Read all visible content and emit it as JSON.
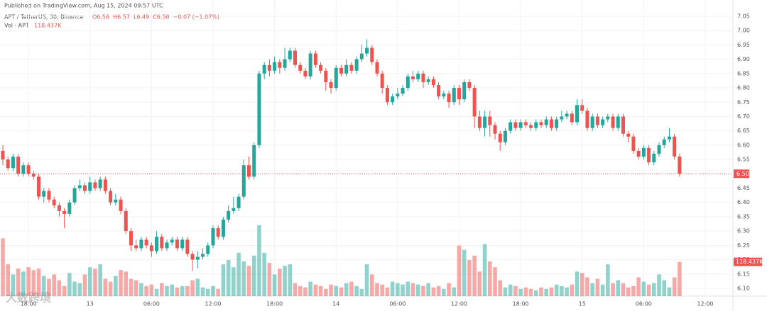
{
  "header": {
    "published": "Published on TradingView.com, Aug 15, 2024 09:57 UTC",
    "symbol": "APT / TetherUS, 30, Binance",
    "ohlc": [
      "O6.56",
      "H6.57",
      "L6.49",
      "C6.50",
      "−0.07 (−1.07%)"
    ],
    "volume_name": "Vol · APT",
    "watermark": "大数跨境"
  },
  "chart_data": {
    "type": "candlestick",
    "up_color": "#26a69a",
    "down_color": "#ef5350",
    "grid": true,
    "ylim": [
      6.1,
      7.05
    ],
    "yticks": [
      {
        "value": 6.1,
        "label": "6.10"
      },
      {
        "value": 6.15,
        "label": "6.15"
      },
      {
        "value": 6.2,
        "label": "6.20"
      },
      {
        "value": 6.25,
        "label": "6.25"
      },
      {
        "value": 6.3,
        "label": "6.30"
      },
      {
        "value": 6.35,
        "label": "6.35"
      },
      {
        "value": 6.4,
        "label": "6.40"
      },
      {
        "value": 6.45,
        "label": "6.45"
      },
      {
        "value": 6.5,
        "label": "6.50"
      },
      {
        "value": 6.55,
        "label": "6.55"
      },
      {
        "value": 6.6,
        "label": "6.60"
      },
      {
        "value": 6.65,
        "label": "6.65"
      },
      {
        "value": 6.7,
        "label": "6.70"
      },
      {
        "value": 6.75,
        "label": "6.75"
      },
      {
        "value": 6.8,
        "label": "6.80"
      },
      {
        "value": 6.85,
        "label": "6.85"
      },
      {
        "value": 6.9,
        "label": "6.90"
      },
      {
        "value": 6.95,
        "label": "6.95"
      },
      {
        "value": 7.0,
        "label": "7.00"
      },
      {
        "value": 7.05,
        "label": "7.05"
      }
    ],
    "last_price": {
      "value": 6.5,
      "label": "6.50"
    },
    "categories": [
      null,
      null,
      null,
      null,
      null,
      "18:00",
      null,
      null,
      null,
      null,
      null,
      null,
      null,
      null,
      null,
      null,
      null,
      "13",
      null,
      null,
      null,
      null,
      null,
      null,
      null,
      null,
      null,
      null,
      null,
      "06:00",
      null,
      null,
      null,
      null,
      null,
      null,
      null,
      null,
      null,
      null,
      null,
      "12:00",
      null,
      null,
      null,
      null,
      null,
      null,
      null,
      null,
      null,
      null,
      null,
      "18:00",
      null,
      null,
      null,
      null,
      null,
      null,
      null,
      null,
      null,
      null,
      null,
      "14",
      null,
      null,
      null,
      null,
      null,
      null,
      null,
      null,
      null,
      null,
      null,
      "06:00",
      null,
      null,
      null,
      null,
      null,
      null,
      null,
      null,
      null,
      null,
      null,
      "12:00",
      null,
      null,
      null,
      null,
      null,
      null,
      null,
      null,
      null,
      null,
      null,
      "18:00",
      null,
      null,
      null,
      null,
      null,
      null,
      null,
      null,
      null,
      null,
      null,
      "15",
      null,
      null,
      null,
      null,
      null,
      null,
      null,
      null,
      null,
      null,
      null,
      "06:00",
      null,
      null,
      null,
      null,
      null,
      null,
      null,
      null,
      null,
      null,
      null,
      "12:00"
    ],
    "open": [
      6.58,
      6.55,
      6.52,
      6.56,
      6.5,
      6.53,
      6.5,
      6.49,
      6.42,
      6.44,
      6.41,
      6.39,
      6.37,
      6.36,
      6.4,
      6.45,
      6.46,
      6.44,
      6.47,
      6.45,
      6.48,
      6.44,
      6.4,
      6.41,
      6.37,
      6.3,
      6.25,
      6.24,
      6.27,
      6.25,
      6.23,
      6.28,
      6.24,
      6.26,
      6.27,
      6.24,
      6.27,
      6.22,
      6.2,
      6.21,
      6.22,
      6.25,
      6.31,
      6.28,
      6.34,
      6.37,
      6.38,
      6.42,
      6.53,
      6.49,
      6.6,
      6.85,
      6.88,
      6.86,
      6.89,
      6.87,
      6.9,
      6.93,
      6.88,
      6.86,
      6.84,
      6.92,
      6.88,
      6.86,
      6.82,
      6.8,
      6.87,
      6.85,
      6.88,
      6.86,
      6.9,
      6.92,
      6.94,
      6.89,
      6.85,
      6.8,
      6.75,
      6.77,
      6.78,
      6.8,
      6.84,
      6.83,
      6.85,
      6.82,
      6.83,
      6.81,
      6.77,
      6.78,
      6.75,
      6.8,
      6.76,
      6.82,
      6.8,
      6.7,
      6.66,
      6.7,
      6.67,
      6.64,
      6.61,
      6.65,
      6.68,
      6.66,
      6.68,
      6.67,
      6.66,
      6.68,
      6.67,
      6.69,
      6.66,
      6.69,
      6.7,
      6.71,
      6.68,
      6.74,
      6.72,
      6.66,
      6.7,
      6.67,
      6.69,
      6.7,
      6.66,
      6.7,
      6.64,
      6.63,
      6.58,
      6.56,
      6.59,
      6.54,
      6.57,
      6.6,
      6.62,
      6.63,
      6.56,
      null,
      null,
      null,
      null,
      null
    ],
    "high": [
      6.6,
      6.56,
      6.57,
      6.57,
      6.54,
      6.54,
      6.51,
      6.5,
      6.45,
      6.45,
      6.42,
      6.4,
      6.38,
      6.41,
      6.46,
      6.48,
      6.47,
      6.49,
      6.48,
      6.49,
      6.49,
      6.45,
      6.43,
      6.42,
      6.38,
      6.31,
      6.27,
      6.28,
      6.28,
      6.26,
      6.3,
      6.29,
      6.27,
      6.28,
      6.28,
      6.28,
      6.28,
      6.23,
      6.23,
      6.24,
      6.26,
      6.32,
      6.32,
      6.35,
      6.39,
      6.42,
      6.43,
      6.55,
      6.56,
      6.61,
      6.86,
      6.89,
      6.9,
      6.91,
      6.9,
      6.94,
      6.94,
      6.94,
      6.89,
      6.87,
      6.93,
      6.93,
      6.89,
      6.87,
      6.83,
      6.88,
      6.88,
      6.9,
      6.89,
      6.91,
      6.95,
      6.97,
      6.95,
      6.9,
      6.86,
      6.81,
      6.78,
      6.8,
      6.81,
      6.85,
      6.86,
      6.86,
      6.86,
      6.84,
      6.84,
      6.82,
      6.79,
      6.79,
      6.81,
      6.81,
      6.83,
      6.83,
      6.81,
      6.72,
      6.72,
      6.72,
      6.68,
      6.65,
      6.66,
      6.69,
      6.69,
      6.69,
      6.69,
      6.68,
      6.69,
      6.69,
      6.7,
      6.7,
      6.7,
      6.72,
      6.72,
      6.72,
      6.76,
      6.76,
      6.73,
      6.71,
      6.71,
      6.7,
      6.71,
      6.71,
      6.71,
      6.71,
      6.65,
      6.64,
      6.59,
      6.6,
      6.6,
      6.58,
      6.61,
      6.63,
      6.66,
      6.64,
      6.57,
      null,
      null,
      null,
      null,
      null
    ],
    "low": [
      6.53,
      6.51,
      6.51,
      6.49,
      6.49,
      6.49,
      6.48,
      6.41,
      6.4,
      6.4,
      6.38,
      6.35,
      6.31,
      6.35,
      6.39,
      6.44,
      6.43,
      6.43,
      6.44,
      6.44,
      6.43,
      6.39,
      6.39,
      6.36,
      6.29,
      6.23,
      6.23,
      6.23,
      6.24,
      6.21,
      6.22,
      6.23,
      6.23,
      6.25,
      6.23,
      6.23,
      6.21,
      6.16,
      6.17,
      6.2,
      6.21,
      6.24,
      6.27,
      6.27,
      6.33,
      6.36,
      6.37,
      6.41,
      6.48,
      6.48,
      6.59,
      6.83,
      6.84,
      6.85,
      6.85,
      6.86,
      6.89,
      6.87,
      6.85,
      6.83,
      6.83,
      6.87,
      6.85,
      6.79,
      6.78,
      6.79,
      6.84,
      6.84,
      6.85,
      6.85,
      6.89,
      6.91,
      6.88,
      6.84,
      6.78,
      6.74,
      6.74,
      6.76,
      6.77,
      6.79,
      6.82,
      6.82,
      6.8,
      6.81,
      6.8,
      6.76,
      6.76,
      6.73,
      6.74,
      6.74,
      6.75,
      6.79,
      6.66,
      6.65,
      6.63,
      6.63,
      6.62,
      6.58,
      6.6,
      6.64,
      6.65,
      6.65,
      6.66,
      6.65,
      6.65,
      6.66,
      6.66,
      6.65,
      6.65,
      6.68,
      6.69,
      6.67,
      6.67,
      6.71,
      6.65,
      6.65,
      6.66,
      6.66,
      6.68,
      6.65,
      6.65,
      6.63,
      6.61,
      6.57,
      6.55,
      6.55,
      6.53,
      6.53,
      6.56,
      6.59,
      6.61,
      6.55,
      6.49,
      null,
      null,
      null,
      null,
      null
    ],
    "close": [
      6.55,
      6.52,
      6.56,
      6.5,
      6.53,
      6.5,
      6.49,
      6.42,
      6.44,
      6.41,
      6.39,
      6.37,
      6.36,
      6.4,
      6.45,
      6.46,
      6.44,
      6.47,
      6.45,
      6.48,
      6.44,
      6.4,
      6.41,
      6.37,
      6.3,
      6.25,
      6.24,
      6.27,
      6.25,
      6.23,
      6.28,
      6.24,
      6.26,
      6.27,
      6.24,
      6.27,
      6.22,
      6.2,
      6.21,
      6.22,
      6.25,
      6.31,
      6.28,
      6.34,
      6.37,
      6.38,
      6.42,
      6.53,
      6.49,
      6.6,
      6.85,
      6.88,
      6.86,
      6.89,
      6.87,
      6.9,
      6.93,
      6.88,
      6.86,
      6.84,
      6.92,
      6.88,
      6.86,
      6.82,
      6.8,
      6.87,
      6.85,
      6.88,
      6.86,
      6.9,
      6.92,
      6.94,
      6.89,
      6.85,
      6.8,
      6.75,
      6.77,
      6.78,
      6.8,
      6.84,
      6.83,
      6.85,
      6.82,
      6.83,
      6.81,
      6.77,
      6.78,
      6.75,
      6.8,
      6.76,
      6.82,
      6.8,
      6.7,
      6.66,
      6.7,
      6.67,
      6.64,
      6.61,
      6.65,
      6.68,
      6.66,
      6.68,
      6.67,
      6.66,
      6.68,
      6.67,
      6.69,
      6.66,
      6.69,
      6.7,
      6.71,
      6.68,
      6.74,
      6.72,
      6.66,
      6.7,
      6.67,
      6.69,
      6.7,
      6.66,
      6.7,
      6.64,
      6.63,
      6.58,
      6.56,
      6.59,
      6.54,
      6.57,
      6.6,
      6.62,
      6.63,
      6.56,
      6.5,
      null,
      null,
      null,
      null,
      null
    ],
    "volume": {
      "values": [
        200000,
        110000,
        75000,
        95000,
        85000,
        100000,
        90000,
        95000,
        70000,
        60000,
        75000,
        55000,
        35000,
        80000,
        50000,
        45000,
        75000,
        100000,
        95000,
        110000,
        60000,
        50000,
        70000,
        90000,
        85000,
        60000,
        55000,
        45000,
        35000,
        40000,
        25000,
        45000,
        35000,
        40000,
        30000,
        35000,
        35000,
        55000,
        60000,
        30000,
        25000,
        35000,
        25000,
        110000,
        125000,
        100000,
        150000,
        120000,
        105000,
        140000,
        245000,
        150000,
        115000,
        75000,
        95000,
        105000,
        110000,
        45000,
        35000,
        30000,
        50000,
        40000,
        35000,
        25000,
        40000,
        35000,
        30000,
        45000,
        50000,
        35000,
        25000,
        110000,
        75000,
        45000,
        40000,
        30000,
        50000,
        45000,
        40000,
        50000,
        45000,
        40000,
        35000,
        45000,
        30000,
        35000,
        25000,
        45000,
        30000,
        175000,
        160000,
        125000,
        140000,
        85000,
        180000,
        120000,
        100000,
        55000,
        30000,
        40000,
        35000,
        25000,
        30000,
        25000,
        20000,
        30000,
        25000,
        30000,
        40000,
        35000,
        30000,
        40000,
        85000,
        80000,
        65000,
        45000,
        60000,
        40000,
        110000,
        45000,
        55000,
        45000,
        30000,
        35000,
        65000,
        50000,
        40000,
        45000,
        75000,
        55000,
        30000,
        65000,
        118437,
        null,
        null,
        null,
        null,
        null
      ],
      "value_labels": [
        null,
        null,
        null,
        null,
        null,
        null,
        null,
        null,
        null,
        null,
        null,
        null,
        null,
        null,
        null,
        null,
        null,
        null,
        null,
        null,
        null,
        null,
        null,
        null,
        null,
        null,
        null,
        null,
        null,
        null,
        null,
        null,
        null,
        null,
        null,
        null,
        null,
        null,
        null,
        null,
        null,
        null,
        null,
        null,
        null,
        null,
        null,
        null,
        null,
        null,
        null,
        null,
        null,
        null,
        null,
        null,
        null,
        null,
        null,
        null,
        null,
        null,
        null,
        null,
        null,
        null,
        null,
        null,
        null,
        null,
        null,
        null,
        null,
        null,
        null,
        null,
        null,
        null,
        null,
        null,
        null,
        null,
        null,
        null,
        null,
        null,
        null,
        null,
        null,
        null,
        null,
        null,
        null,
        null,
        null,
        null,
        null,
        null,
        null,
        null,
        null,
        null,
        null,
        null,
        null,
        null,
        null,
        null,
        null,
        null,
        null,
        null,
        null,
        null,
        null,
        null,
        null,
        null,
        null,
        null,
        null,
        null,
        null,
        null,
        null,
        null,
        null,
        null,
        null,
        null,
        null,
        null,
        "118.437K",
        null,
        null,
        null,
        null,
        null
      ]
    }
  }
}
